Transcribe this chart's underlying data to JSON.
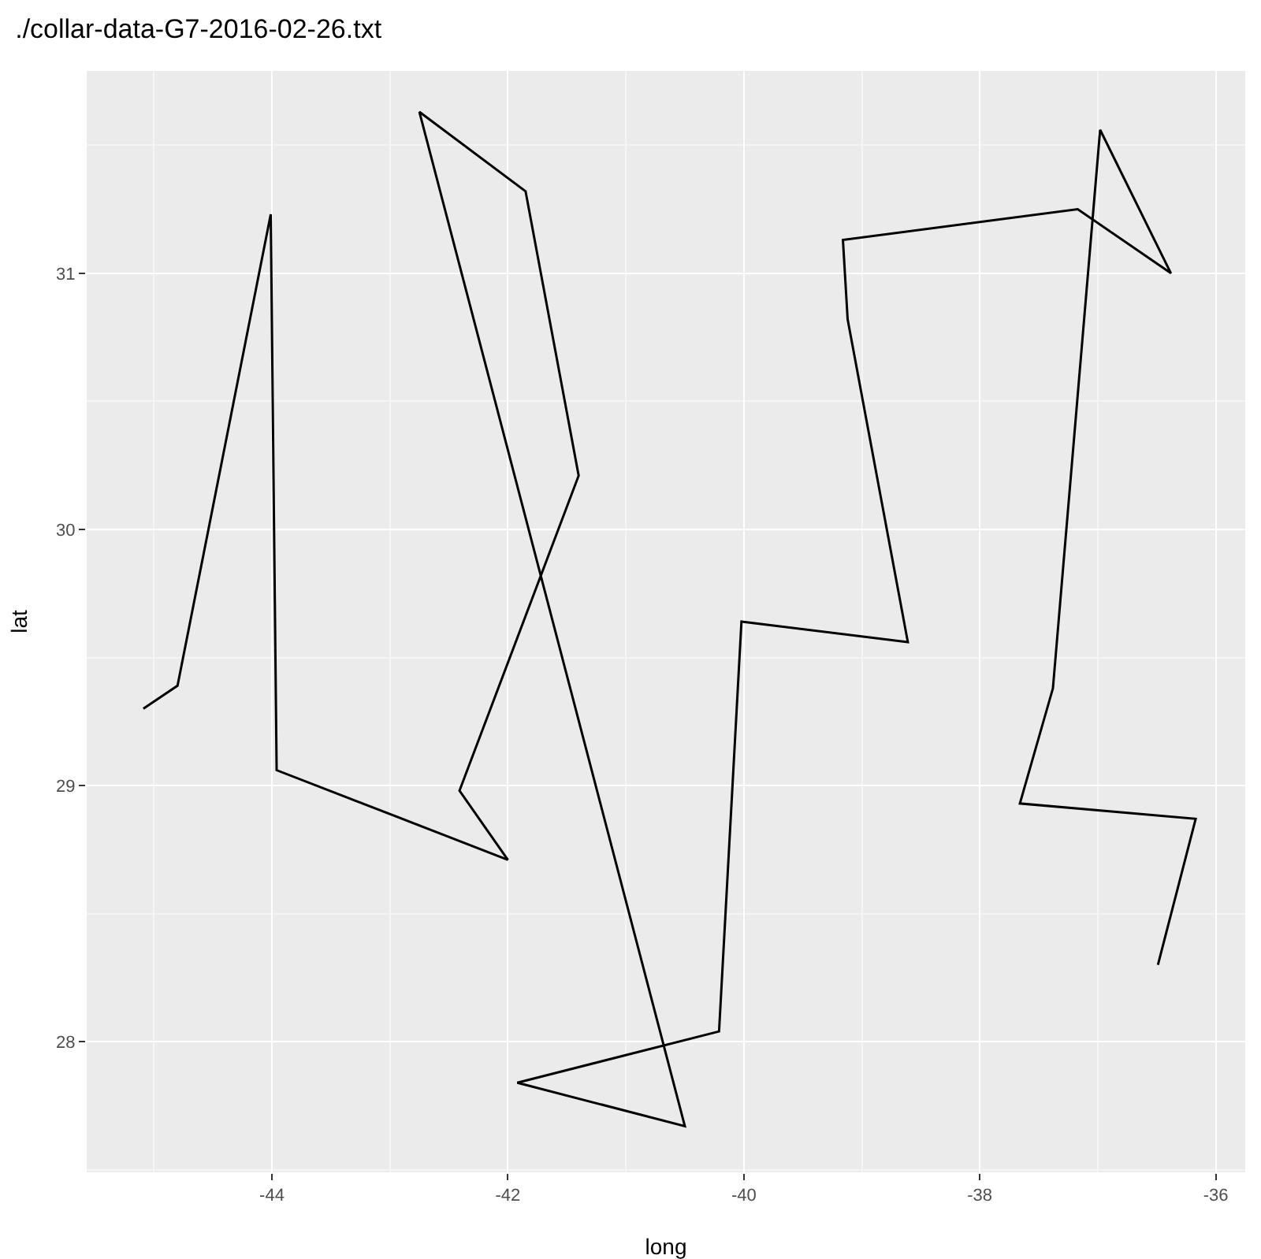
{
  "chart_data": {
    "type": "line",
    "title": "./collar-data-G7-2016-02-26.txt",
    "xlabel": "long",
    "ylabel": "lat",
    "x": [
      -45.09,
      -44.8,
      -44.01,
      -43.96,
      -42.0,
      -42.41,
      -41.4,
      -41.85,
      -42.75,
      -40.5,
      -41.92,
      -40.21,
      -40.02,
      -38.61,
      -39.12,
      -39.16,
      -37.17,
      -36.38,
      -36.98,
      -37.38,
      -37.66,
      -36.17,
      -36.49
    ],
    "series": [
      {
        "color": "#000000",
        "values": [
          29.3,
          29.39,
          31.23,
          29.06,
          28.71,
          28.98,
          30.21,
          31.32,
          31.63,
          27.67,
          27.84,
          28.04,
          29.64,
          29.56,
          30.82,
          31.13,
          31.25,
          31.0,
          31.56,
          29.38,
          28.93,
          28.87,
          28.3
        ]
      }
    ],
    "xlim": [
      -45.57,
      -35.75
    ],
    "ylim": [
      27.49,
      31.79
    ],
    "xticks": [
      -44,
      -42,
      -40,
      -38,
      -36
    ],
    "yticks": [
      28,
      29,
      30,
      31
    ],
    "grid": true,
    "marker": "none",
    "line_style": "solid"
  }
}
